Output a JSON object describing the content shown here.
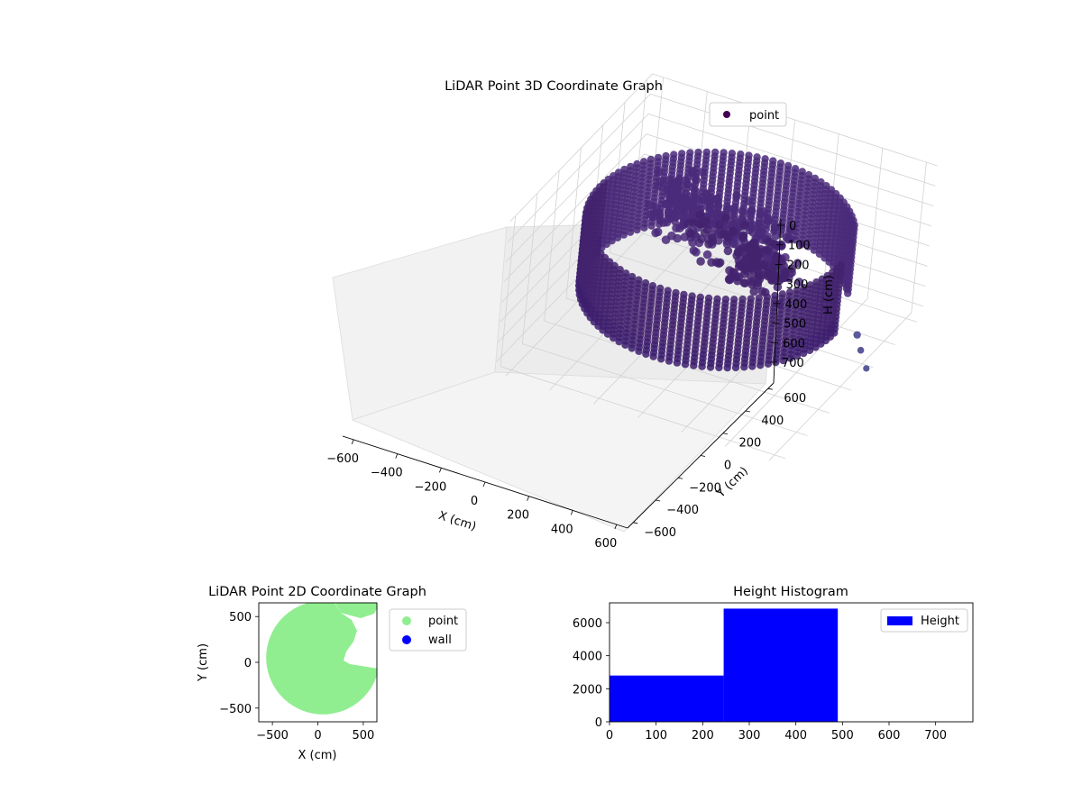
{
  "chart_data": [
    {
      "type": "scatter3d",
      "title": "LiDAR Point 3D Coordinate Graph",
      "xlabel": "X (cm)",
      "ylabel": "Y (cm)",
      "zlabel": "H (cm)",
      "xlim": [
        -650,
        650
      ],
      "ylim": [
        -650,
        650
      ],
      "zlim": [
        0,
        750
      ],
      "xticks": [
        "−600",
        "−400",
        "−200",
        "0",
        "200",
        "400",
        "600"
      ],
      "yticks": [
        "−600",
        "−400",
        "−200",
        "0",
        "200",
        "400",
        "600"
      ],
      "zticks": [
        "0",
        "100",
        "200",
        "300",
        "400",
        "500",
        "600",
        "700"
      ],
      "z_inverted": true,
      "grid": true,
      "legend": {
        "position": "top-right",
        "entries": [
          {
            "label": "point",
            "color": "#440154"
          }
        ]
      },
      "series": [
        {
          "name": "point",
          "color": "#440154",
          "shape": "circular wall of scanned points, radius about 550 cm, heights about 150–500 cm, with an interior cluster of points"
        }
      ]
    },
    {
      "type": "scatter",
      "title": "LiDAR Point 2D Coordinate Graph",
      "xlabel": "X (cm)",
      "ylabel": "Y (cm)",
      "xlim": [
        -650,
        650
      ],
      "ylim": [
        -650,
        650
      ],
      "xticks": [
        "−500",
        "0",
        "500"
      ],
      "yticks": [
        "−500",
        "0",
        "500"
      ],
      "legend": {
        "position": "outside-right",
        "entries": [
          {
            "label": "point",
            "color": "#90ee90"
          },
          {
            "label": "wall",
            "color": "#0000ff"
          }
        ]
      }
    },
    {
      "type": "bar",
      "title": "Height Histogram",
      "xlim": [
        0,
        780
      ],
      "ylim": [
        0,
        7200
      ],
      "xticks": [
        "0",
        "100",
        "200",
        "300",
        "400",
        "500",
        "600",
        "700"
      ],
      "yticks": [
        "0",
        "2000",
        "4000",
        "6000"
      ],
      "bins": [
        {
          "x0": 0,
          "x1": 245,
          "count": 2800
        },
        {
          "x0": 245,
          "x1": 490,
          "count": 6850
        },
        {
          "x0": 490,
          "x1": 735,
          "count": 0
        }
      ],
      "color": "#0000ff",
      "legend": {
        "position": "top-right",
        "entries": [
          {
            "label": "Height",
            "color": "#0000ff"
          }
        ]
      }
    }
  ]
}
